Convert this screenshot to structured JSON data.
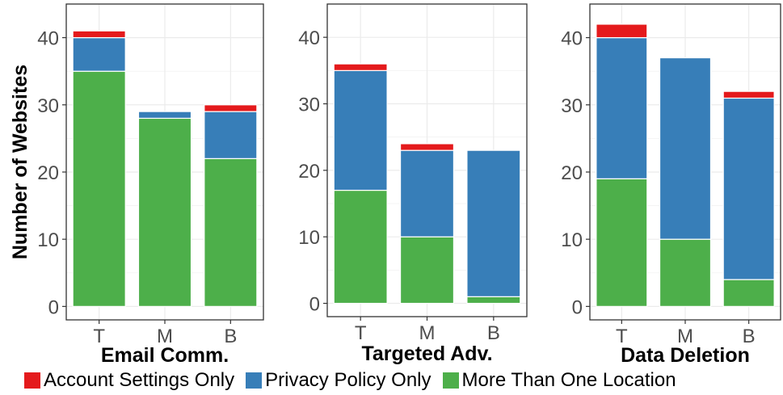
{
  "colors": {
    "account_settings_only": "#e41a1c",
    "privacy_policy_only": "#377eb8",
    "more_than_one_location": "#4daf4a"
  },
  "legend": {
    "items": [
      {
        "label": "Account Settings Only",
        "color": "#e41a1c"
      },
      {
        "label": "Privacy Policy Only",
        "color": "#377eb8"
      },
      {
        "label": "More Than One Location",
        "color": "#4daf4a"
      }
    ]
  },
  "chart_data": [
    {
      "type": "bar",
      "stacked": true,
      "title": "Email Comm.",
      "ylabel": "Number of Websites",
      "xlabel": "",
      "categories": [
        "T",
        "M",
        "B"
      ],
      "yticks": [
        0,
        10,
        20,
        30,
        40
      ],
      "ylim": [
        -2,
        45
      ],
      "grid": true,
      "series": [
        {
          "name": "More Than One Location",
          "values": [
            35,
            28,
            22
          ]
        },
        {
          "name": "Privacy Policy Only",
          "values": [
            5,
            1,
            7
          ]
        },
        {
          "name": "Account Settings Only",
          "values": [
            1,
            0,
            1
          ]
        }
      ]
    },
    {
      "type": "bar",
      "stacked": true,
      "title": "Targeted Adv.",
      "xlabel": "",
      "categories": [
        "T",
        "M",
        "B"
      ],
      "yticks": [
        0,
        10,
        20,
        30,
        40
      ],
      "ylim": [
        -2,
        45
      ],
      "grid": true,
      "series": [
        {
          "name": "More Than One Location",
          "values": [
            17,
            10,
            1
          ]
        },
        {
          "name": "Privacy Policy Only",
          "values": [
            18,
            13,
            22
          ]
        },
        {
          "name": "Account Settings Only",
          "values": [
            1,
            1,
            0
          ]
        }
      ]
    },
    {
      "type": "bar",
      "stacked": true,
      "title": "Data Deletion",
      "xlabel": "",
      "categories": [
        "T",
        "M",
        "B"
      ],
      "yticks": [
        0,
        10,
        20,
        30,
        40
      ],
      "ylim": [
        -2,
        45
      ],
      "grid": true,
      "series": [
        {
          "name": "More Than One Location",
          "values": [
            19,
            10,
            4
          ]
        },
        {
          "name": "Privacy Policy Only",
          "values": [
            21,
            27,
            27
          ]
        },
        {
          "name": "Account Settings Only",
          "values": [
            2,
            0,
            1
          ]
        }
      ]
    }
  ]
}
